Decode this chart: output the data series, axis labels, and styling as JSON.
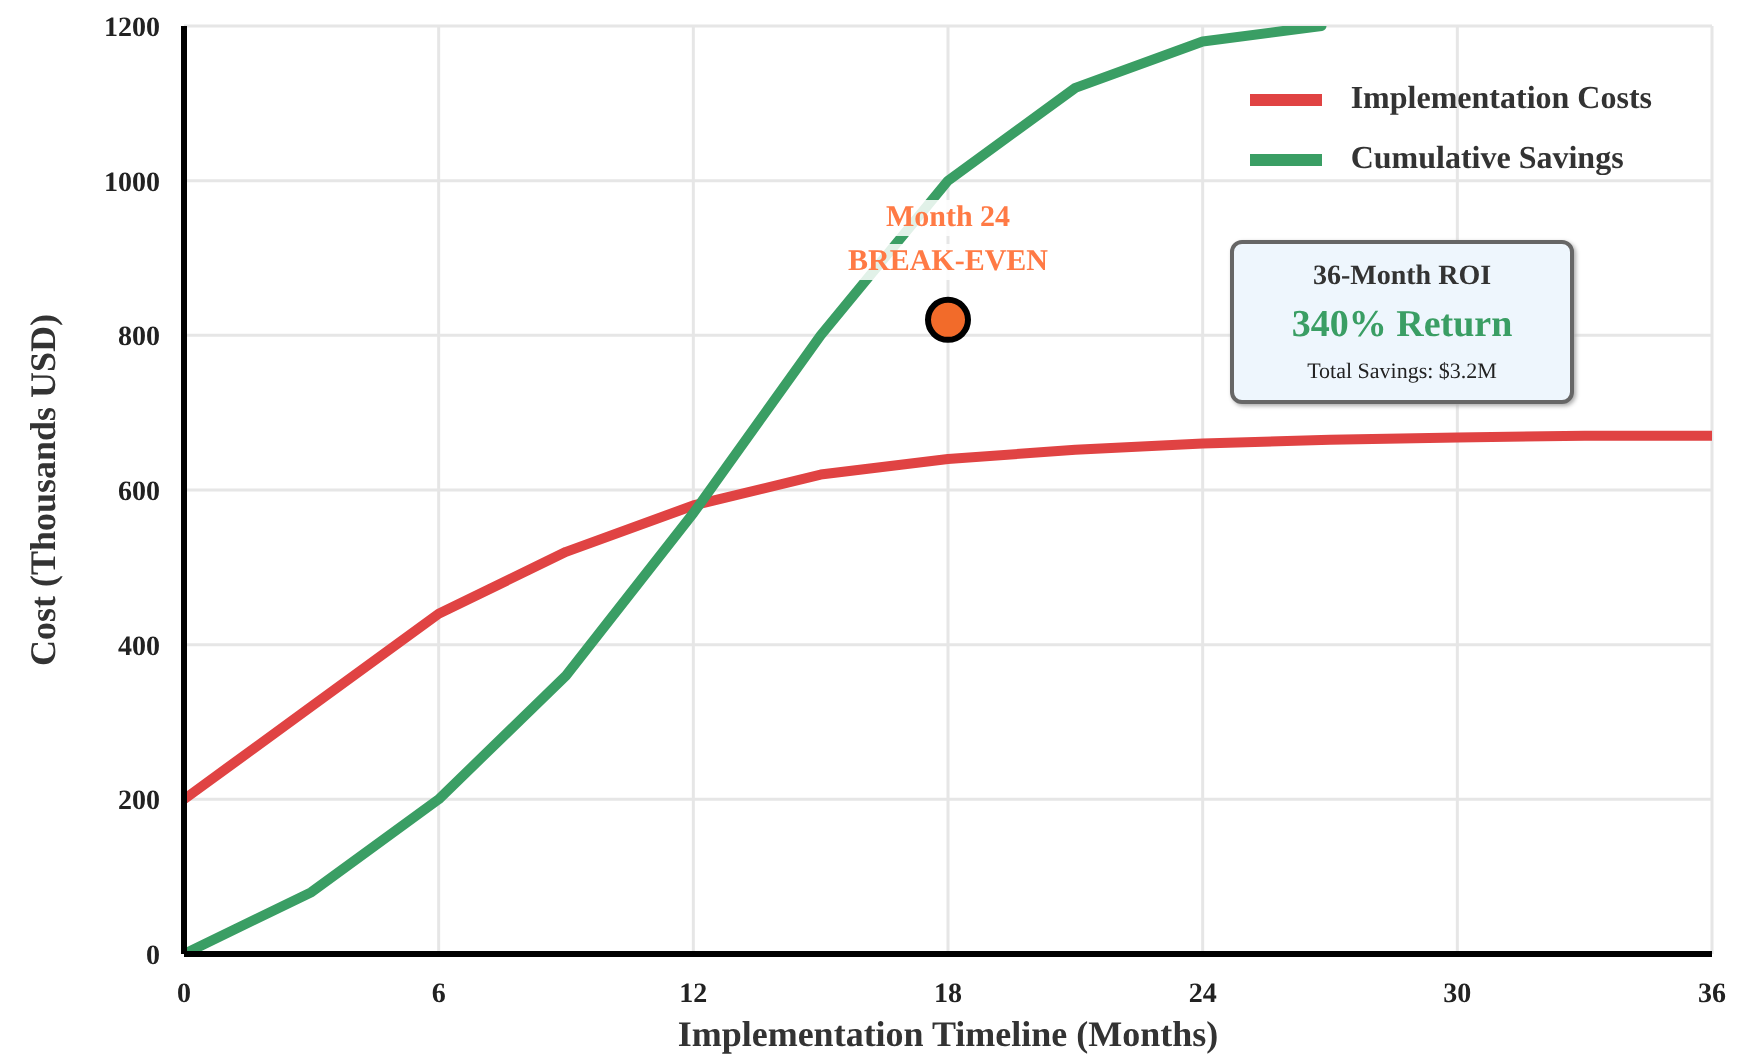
{
  "chart_data": {
    "type": "line",
    "xlabel": "Implementation Timeline (Months)",
    "ylabel": "Cost (Thousands USD)",
    "x": [
      0,
      3,
      6,
      9,
      12,
      15,
      18,
      21,
      24,
      27,
      30,
      33,
      36
    ],
    "series": [
      {
        "name": "Implementation Costs",
        "color": "#e04343",
        "values": [
          200,
          320,
          440,
          520,
          580,
          620,
          640,
          652,
          660,
          665,
          668,
          670,
          670
        ]
      },
      {
        "name": "Cumulative Savings",
        "color": "#3a9e64",
        "x": [
          0,
          3,
          6,
          9,
          12,
          15,
          18,
          21,
          24,
          26.8
        ],
        "values": [
          0,
          80,
          200,
          360,
          570,
          800,
          1000,
          1120,
          1180,
          1200
        ]
      },
      {
        "type": "scatter",
        "color": "#f26b2a",
        "marker": "circle",
        "x": [
          18
        ],
        "values": [
          820
        ]
      }
    ],
    "xlim": [
      0,
      36
    ],
    "xticks": [
      0,
      6,
      12,
      18,
      24,
      30,
      36
    ],
    "ylim": [
      0,
      1200
    ],
    "yticks": [
      0,
      200,
      400,
      600,
      800,
      1000,
      1200
    ],
    "grid": true,
    "legend": "top right",
    "line_style": "solid",
    "annotations": [
      {
        "text": "Month 24",
        "x": 18,
        "y": 820
      },
      {
        "text": "BREAK-EVEN",
        "x": 18,
        "y": 820
      },
      "36-Month ROI",
      "340% Return",
      "Total Savings: $3.2M"
    ]
  }
}
